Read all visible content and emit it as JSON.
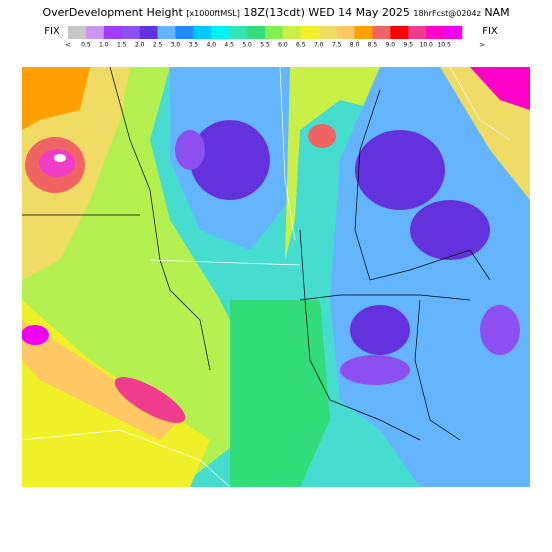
{
  "header": {
    "title_parts": [
      "OverDevelopment Height",
      "[x1000ftMSL]",
      "18Z(13cdt)",
      "WED 14 May 2025",
      "18hrFcst@0204z",
      "NAM"
    ]
  },
  "legend": {
    "left_label": "FIX",
    "right_label": "FIX",
    "left_arrow": "<",
    "right_arrow": ">",
    "colors": [
      "#c8c8c8",
      "#c896f0",
      "#a03cff",
      "#8c50f0",
      "#6432dc",
      "#64b4ff",
      "#1e8cff",
      "#00c8ff",
      "#00f0f0",
      "#32e6b4",
      "#32dc78",
      "#82f050",
      "#c8f046",
      "#f0f028",
      "#f0dc64",
      "#ffc864",
      "#ffa000",
      "#f06464",
      "#ff0000",
      "#f03c8c",
      "#ff00c8",
      "#f000f0"
    ],
    "labels": [
      "0.5",
      "1.0",
      "1.5",
      "2.0",
      "2.5",
      "3.0",
      "3.5",
      "4.0",
      "4.5",
      "5.0",
      "5.5",
      "6.0",
      "6.5",
      "7.0",
      "7.5",
      "8.0",
      "8.5",
      "9.0",
      "9.5",
      "10.0",
      "10.5"
    ]
  }
}
